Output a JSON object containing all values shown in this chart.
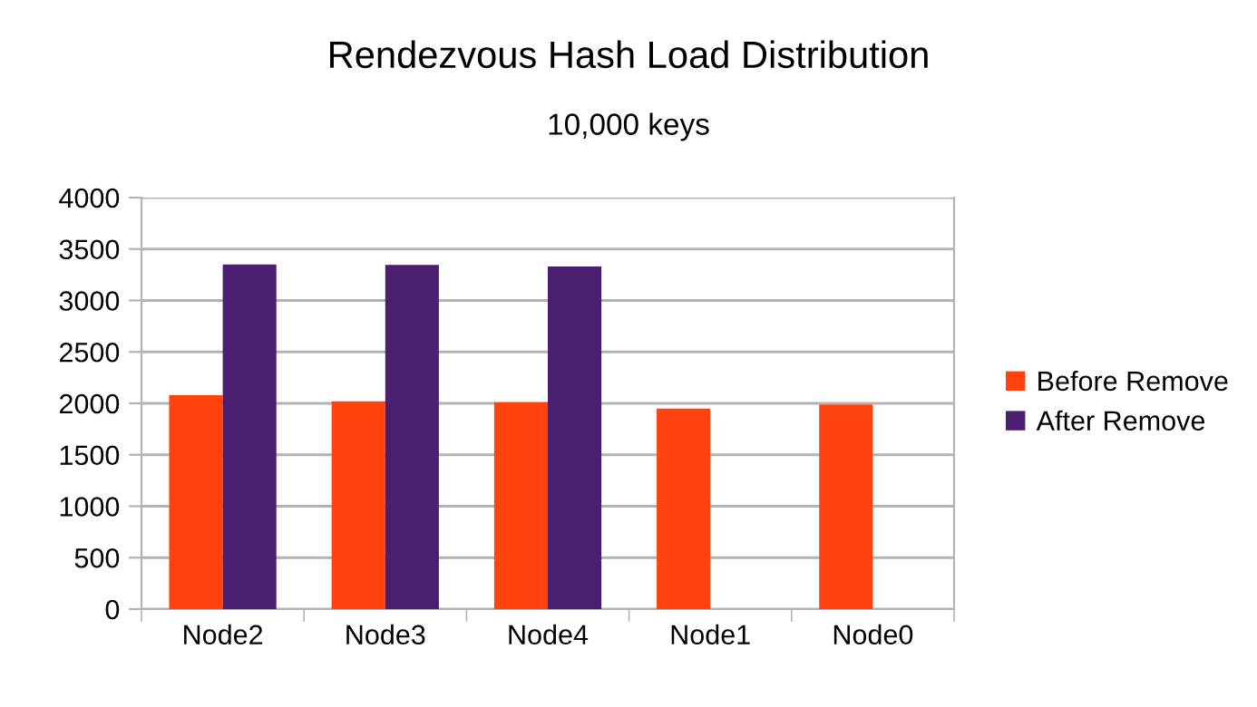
{
  "chart_data": {
    "type": "bar",
    "title": "Rendezvous Hash Load Distribution",
    "subtitle": "10,000 keys",
    "categories": [
      "Node2",
      "Node3",
      "Node4",
      "Node1",
      "Node0"
    ],
    "series": [
      {
        "name": "Before Remove",
        "color": "#ff420e",
        "values": [
          2080,
          2020,
          2010,
          1950,
          1990
        ]
      },
      {
        "name": "After Remove",
        "color": "#4b1f6f",
        "values": [
          3350,
          3345,
          3330,
          null,
          null
        ]
      }
    ],
    "ylim": [
      0,
      4000
    ],
    "yticks": [
      0,
      500,
      1000,
      1500,
      2000,
      2500,
      3000,
      3500,
      4000
    ],
    "grid": "y",
    "legend": "right"
  }
}
